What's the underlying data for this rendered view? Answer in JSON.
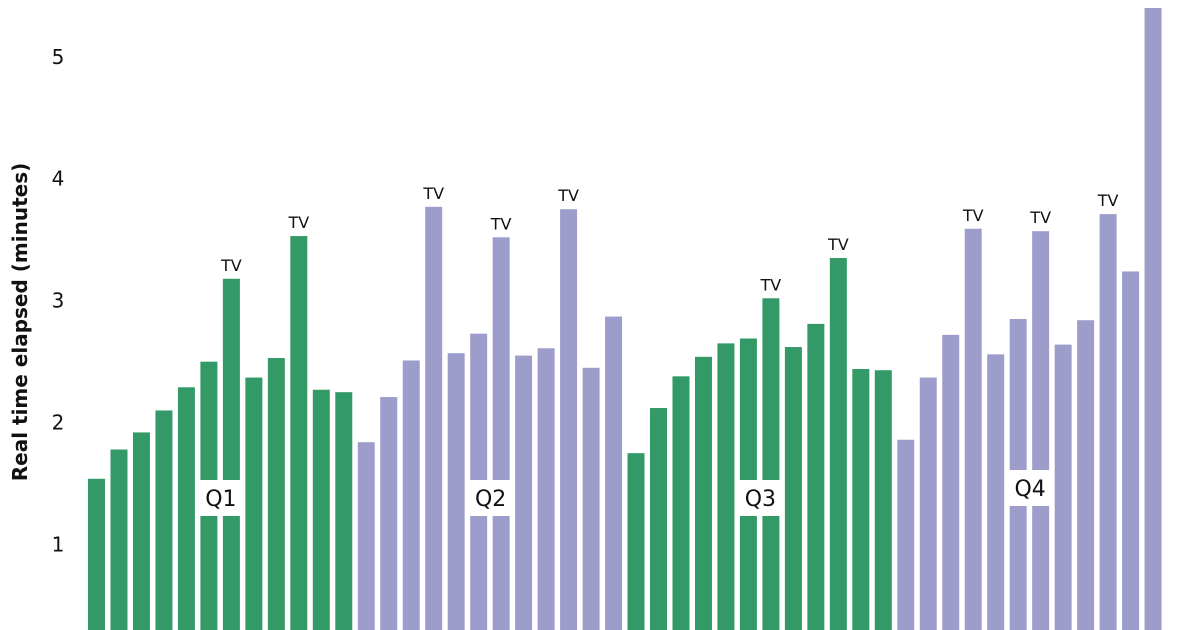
{
  "chart_data": {
    "type": "bar",
    "ylabel": "Real time elapsed (minutes)",
    "xlabel": "",
    "ylim": [
      0.3,
      5.4
    ],
    "yticks": [
      "1",
      "2",
      "3",
      "4",
      "5"
    ],
    "colors": {
      "odd_quarter": "#339966",
      "even_quarter": "#9d9dcc"
    },
    "quarters": [
      {
        "label": "Q1",
        "color": "#339966",
        "values": [
          1.54,
          1.78,
          1.92,
          2.1,
          2.29,
          2.5,
          3.18,
          2.37,
          2.53,
          3.53,
          2.27,
          2.25
        ],
        "tv": [
          false,
          false,
          false,
          false,
          false,
          false,
          true,
          false,
          false,
          true,
          false,
          false
        ]
      },
      {
        "label": "Q2",
        "color": "#9d9dcc",
        "values": [
          1.84,
          2.21,
          2.51,
          3.77,
          2.57,
          2.73,
          3.52,
          2.55,
          2.61,
          3.75,
          2.45,
          2.87
        ],
        "tv": [
          false,
          false,
          false,
          true,
          false,
          false,
          true,
          false,
          false,
          true,
          false,
          false
        ]
      },
      {
        "label": "Q3",
        "color": "#339966",
        "values": [
          1.75,
          2.12,
          2.38,
          2.54,
          2.65,
          2.69,
          3.02,
          2.62,
          2.81,
          3.35,
          2.44,
          2.43
        ],
        "tv": [
          false,
          false,
          false,
          false,
          false,
          false,
          true,
          false,
          false,
          true,
          false,
          false
        ]
      },
      {
        "label": "Q4",
        "color": "#9d9dcc",
        "values": [
          1.86,
          2.37,
          2.72,
          3.59,
          2.56,
          2.85,
          3.57,
          2.64,
          2.84,
          3.71,
          3.24,
          5.4
        ],
        "tv": [
          false,
          false,
          false,
          true,
          false,
          false,
          true,
          false,
          false,
          true,
          false,
          false
        ]
      }
    ],
    "tv_text": "TV"
  }
}
